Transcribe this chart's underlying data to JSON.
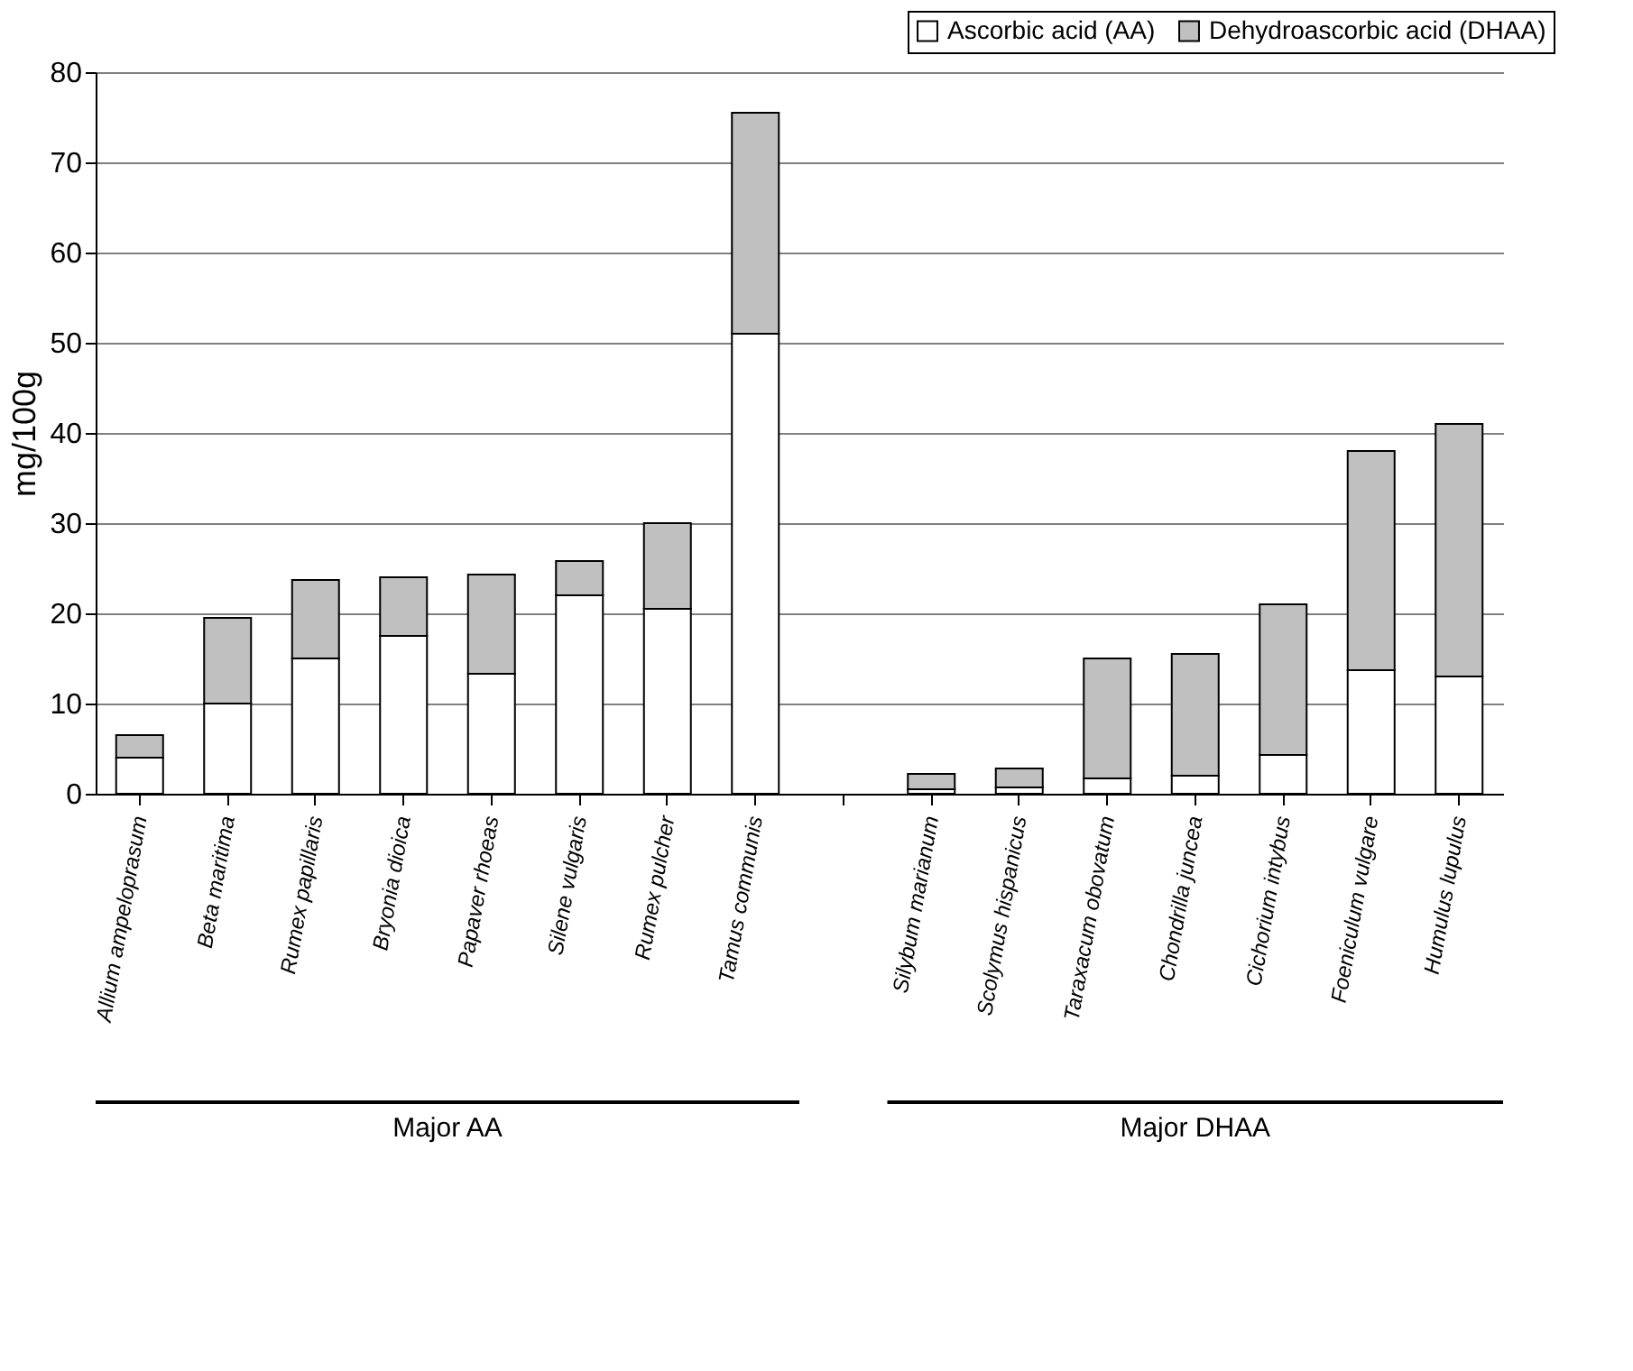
{
  "chart_data": {
    "type": "bar",
    "stacked": true,
    "ylabel": "mg/100g",
    "ylim": [
      0,
      80
    ],
    "yticks": [
      0,
      10,
      20,
      30,
      40,
      50,
      60,
      70,
      80
    ],
    "grid": "y",
    "legend": "top right",
    "categories": [
      "Allium ampeloprasum",
      "Beta maritima",
      "Rumex papillaris",
      "Bryonia dioica",
      "Papaver rhoeas",
      "Silene vulgaris",
      "Rumex pulcher",
      "Tamus communis",
      null,
      "Silybum marianum",
      "Scolymus hispanicus",
      "Taraxacum obovatum",
      "Chondrilla juncea",
      "Cichorium intybus",
      "Foeniculum vulgare",
      "Humulus lupulus"
    ],
    "series": [
      {
        "name": "Ascorbic acid (AA)",
        "color": "#ffffff",
        "values": [
          4,
          10,
          15,
          17.5,
          13.3,
          22,
          20.5,
          51,
          null,
          0.5,
          0.7,
          1.7,
          2,
          4.3,
          13.7,
          13
        ]
      },
      {
        "name": "Dehydroascorbic acid (DHAA)",
        "color": "#c0c0c0",
        "values": [
          2.5,
          9.5,
          8.7,
          6.5,
          11,
          3.8,
          9.5,
          24.5,
          null,
          1.7,
          2.1,
          13.3,
          13.5,
          16.7,
          24.3,
          28
        ]
      }
    ],
    "annotations": [
      "Major  AA",
      "Major  DHAA"
    ]
  }
}
